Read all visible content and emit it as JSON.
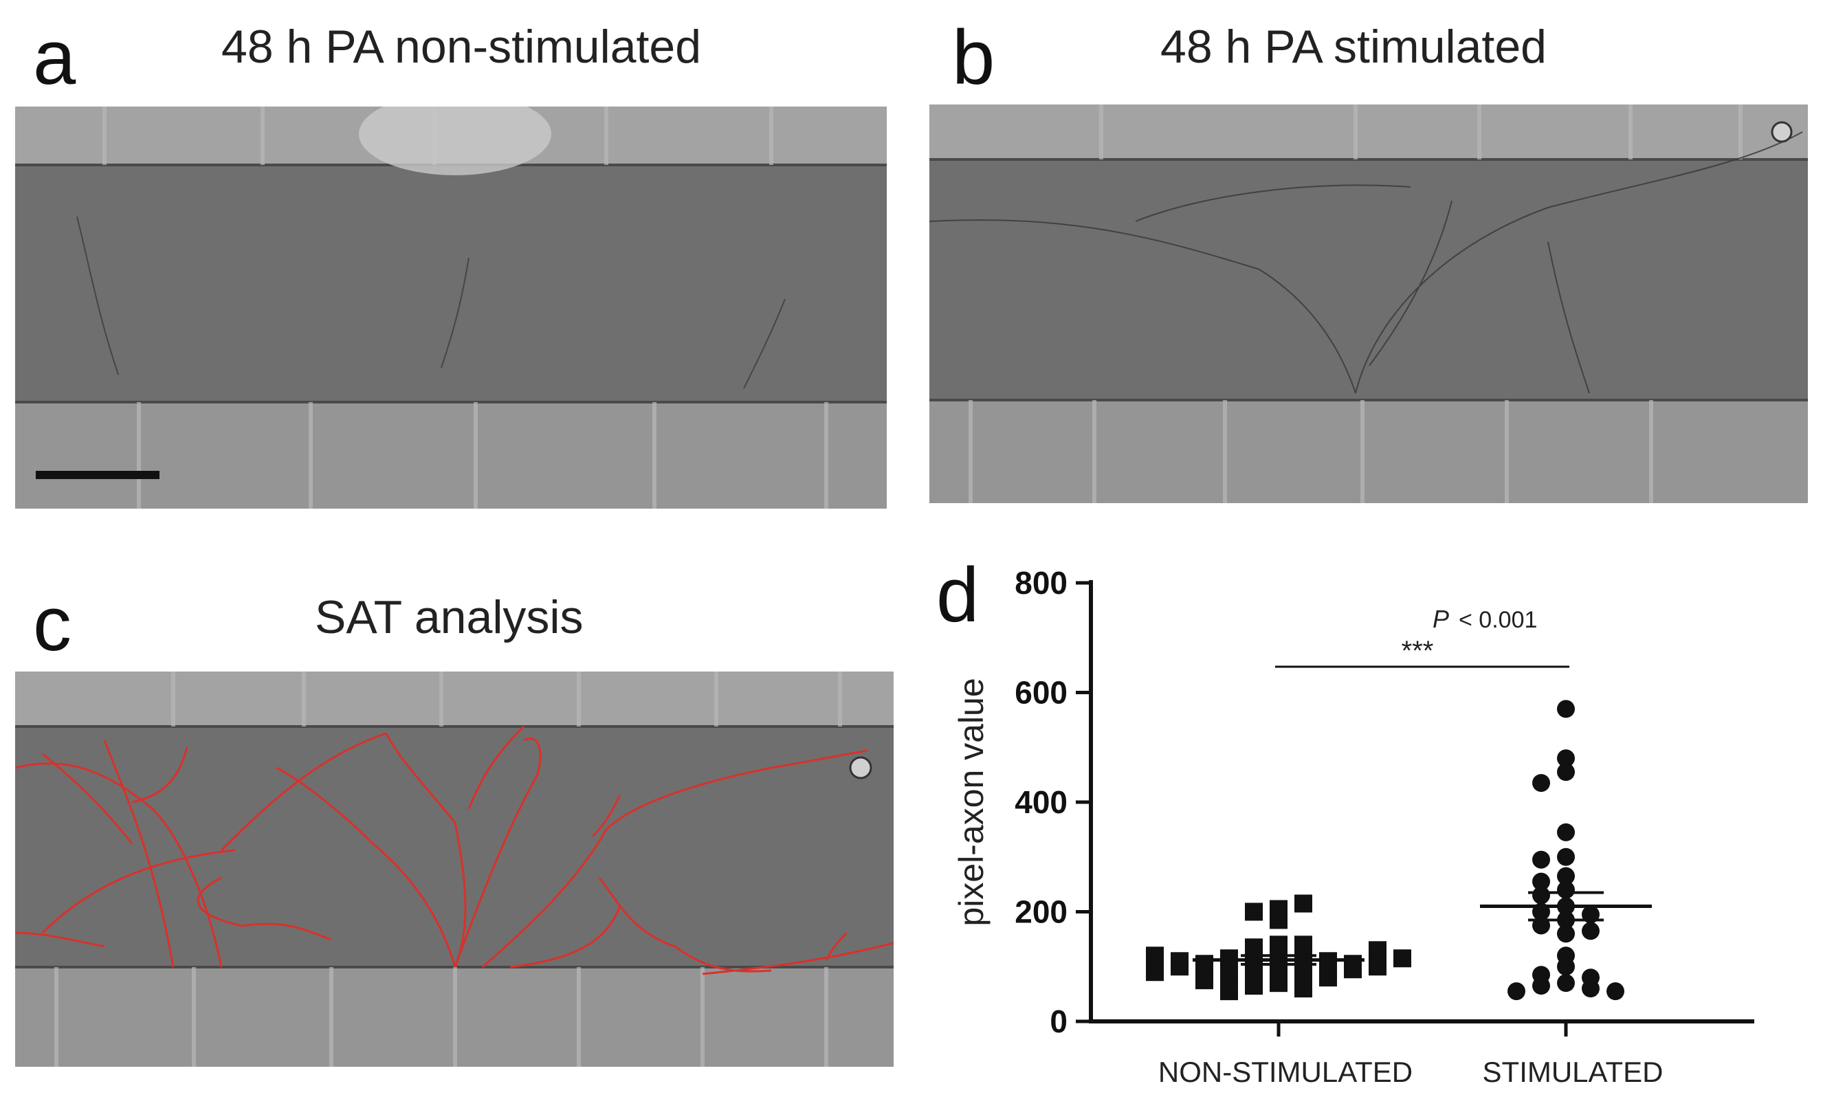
{
  "panels": {
    "a": {
      "letter": "a",
      "title": "48 h PA non-stimulated"
    },
    "b": {
      "letter": "b",
      "title": "48 h PA stimulated"
    },
    "c": {
      "letter": "c",
      "title": "SAT analysis"
    },
    "d": {
      "letter": "d"
    }
  },
  "colors": {
    "trace": "#d9312b",
    "channel": "#6e6e6e",
    "compartment": "#8a8a8a",
    "markers": "#111111"
  },
  "chart_data": {
    "type": "scatter",
    "title": "",
    "xlabel": "",
    "ylabel": "pixel-axon value",
    "ylim": [
      0,
      800
    ],
    "yticks": [
      0,
      200,
      400,
      600,
      800
    ],
    "categories": [
      "NON-STIMULATED",
      "STIMULATED"
    ],
    "series": [
      {
        "category": "NON-STIMULATED",
        "marker": "square",
        "values": [
          205,
          185,
          200,
          215,
          140,
          130,
          135,
          125,
          120,
          115,
          110,
          105,
          100,
          95,
          90,
          85,
          80,
          75,
          70,
          65,
          60,
          55,
          95,
          100,
          105,
          110,
          140,
          130,
          120,
          115,
          100,
          90
        ],
        "mean": 112,
        "sem": 8
      },
      {
        "category": "STIMULATED",
        "marker": "circle",
        "values": [
          570,
          480,
          455,
          435,
          345,
          300,
          295,
          265,
          255,
          240,
          230,
          210,
          200,
          195,
          185,
          175,
          165,
          160,
          120,
          100,
          85,
          80,
          70,
          65,
          60,
          55,
          55
        ],
        "mean": 210,
        "sem": 25
      }
    ],
    "annotation": {
      "p_label": "P",
      "p_text": "< 0.001",
      "stars": "***"
    }
  }
}
